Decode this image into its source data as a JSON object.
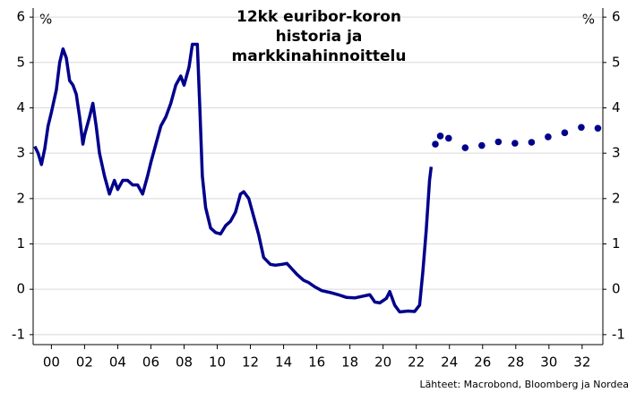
{
  "chart_data": {
    "type": "line",
    "title": "12kk euribor-koron historia ja markkinahinnoittelu",
    "y_label": "%",
    "y2_label": "%",
    "source": "Lähteet: Macrobond, Bloomberg ja Nordea",
    "xlim": [
      1998.9,
      2033.25
    ],
    "xticks": [
      {
        "value": 2000,
        "label": "00"
      },
      {
        "value": 2002,
        "label": "02"
      },
      {
        "value": 2004,
        "label": "04"
      },
      {
        "value": 2006,
        "label": "06"
      },
      {
        "value": 2008,
        "label": "08"
      },
      {
        "value": 2010,
        "label": "10"
      },
      {
        "value": 2012,
        "label": "12"
      },
      {
        "value": 2014,
        "label": "14"
      },
      {
        "value": 2016,
        "label": "16"
      },
      {
        "value": 2018,
        "label": "18"
      },
      {
        "value": 2020,
        "label": "20"
      },
      {
        "value": 2022,
        "label": "22"
      },
      {
        "value": 2024,
        "label": "24"
      },
      {
        "value": 2026,
        "label": "26"
      },
      {
        "value": 2028,
        "label": "28"
      },
      {
        "value": 2030,
        "label": "30"
      },
      {
        "value": 2032,
        "label": "32"
      }
    ],
    "ylim": [
      -1.22,
      6.2
    ],
    "yticks": [
      -1,
      0,
      1,
      2,
      3,
      4,
      5,
      6
    ],
    "y2lim": [
      -1.22,
      6.2
    ],
    "y2ticks": [
      -1,
      0,
      1,
      2,
      3,
      4,
      5,
      6
    ],
    "grid": true,
    "series": [
      {
        "style": "line",
        "color": "#00008c",
        "x": [
          1999.0,
          1999.2,
          1999.4,
          1999.6,
          1999.8,
          2000.0,
          2000.3,
          2000.5,
          2000.7,
          2000.9,
          2001.1,
          2001.3,
          2001.5,
          2001.7,
          2001.9,
          2002.0,
          2002.3,
          2002.5,
          2002.7,
          2002.9,
          2003.2,
          2003.5,
          2003.8,
          2004.0,
          2004.3,
          2004.6,
          2004.9,
          2005.2,
          2005.5,
          2005.8,
          2006.0,
          2006.3,
          2006.6,
          2006.9,
          2007.2,
          2007.5,
          2007.8,
          2008.0,
          2008.3,
          2008.5,
          2008.8,
          2008.95,
          2009.1,
          2009.3,
          2009.6,
          2009.9,
          2010.2,
          2010.5,
          2010.8,
          2011.1,
          2011.4,
          2011.6,
          2011.9,
          2012.2,
          2012.5,
          2012.8,
          2013.2,
          2013.5,
          2013.9,
          2014.2,
          2014.5,
          2014.8,
          2015.2,
          2015.5,
          2015.9,
          2016.3,
          2016.8,
          2017.3,
          2017.8,
          2018.3,
          2018.8,
          2019.2,
          2019.5,
          2019.8,
          2020.2,
          2020.4,
          2020.7,
          2021.0,
          2021.5,
          2021.9,
          2022.2,
          2022.4,
          2022.6,
          2022.8,
          2022.9
        ],
        "values": [
          3.15,
          3.0,
          2.75,
          3.1,
          3.6,
          3.9,
          4.4,
          5.0,
          5.3,
          5.1,
          4.6,
          4.5,
          4.3,
          3.8,
          3.2,
          3.4,
          3.8,
          4.1,
          3.6,
          3.0,
          2.5,
          2.1,
          2.4,
          2.2,
          2.4,
          2.4,
          2.3,
          2.3,
          2.1,
          2.5,
          2.8,
          3.2,
          3.6,
          3.8,
          4.1,
          4.5,
          4.7,
          4.5,
          4.9,
          5.4,
          5.4,
          4.0,
          2.5,
          1.8,
          1.35,
          1.25,
          1.22,
          1.4,
          1.5,
          1.7,
          2.1,
          2.15,
          2.0,
          1.6,
          1.2,
          0.7,
          0.55,
          0.53,
          0.55,
          0.57,
          0.45,
          0.33,
          0.2,
          0.15,
          0.05,
          -0.03,
          -0.07,
          -0.12,
          -0.18,
          -0.19,
          -0.15,
          -0.12,
          -0.28,
          -0.3,
          -0.2,
          -0.05,
          -0.35,
          -0.5,
          -0.48,
          -0.49,
          -0.35,
          0.4,
          1.3,
          2.4,
          2.7
        ]
      },
      {
        "style": "markers",
        "color": "#00008c",
        "x": [
          2023.15,
          2023.45,
          2023.95,
          2024.95,
          2025.95,
          2026.95,
          2027.95,
          2028.95,
          2029.95,
          2030.95,
          2031.95,
          2032.95
        ],
        "values": [
          3.2,
          3.38,
          3.33,
          3.12,
          3.17,
          3.25,
          3.22,
          3.24,
          3.36,
          3.45,
          3.57,
          3.55
        ]
      }
    ]
  }
}
